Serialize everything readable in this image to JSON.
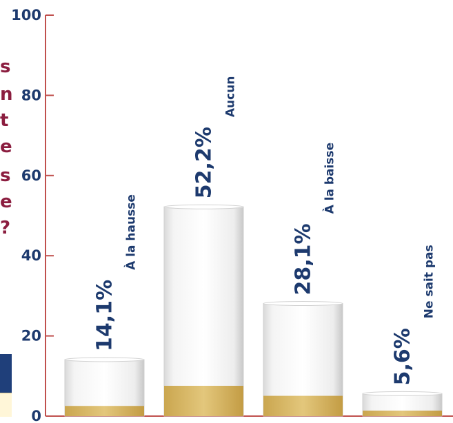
{
  "chart_data": {
    "type": "bar",
    "categories": [
      "À la hausse",
      "Aucun",
      "À la baisse",
      "Ne sait pas"
    ],
    "values": [
      14.1,
      52.2,
      28.1,
      5.6
    ],
    "value_labels": [
      "14,1%",
      "52,2%",
      "28,1%",
      "5,6%"
    ],
    "ylim": [
      0,
      100
    ],
    "yticks": [
      0,
      20,
      40,
      60,
      80,
      100
    ],
    "grid": false,
    "colors": {
      "axis": "#c0504d",
      "text": "#1d3a6e",
      "bar_body": "#fbfbfb",
      "bar_base": "#d9bc6a",
      "side_text": "#8b1d3f",
      "legend_dark": "#1f3f7a",
      "legend_light": "#fff6d8"
    }
  },
  "side_text_fragments": [
    "s",
    "n",
    "t",
    "e",
    "s",
    "e",
    "?"
  ]
}
